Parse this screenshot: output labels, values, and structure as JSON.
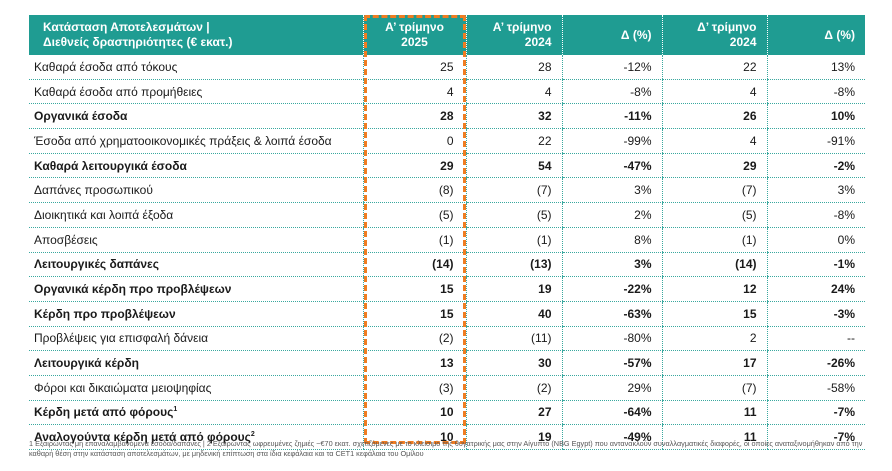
{
  "table": {
    "headers": [
      {
        "line1": "Κατάσταση Αποτελεσμάτων |",
        "line2": "Διεθνείς δραστηριότητες (€ εκατ.)"
      },
      {
        "line1": "Α’ τρίμηνο",
        "line2": "2025"
      },
      {
        "line1": "Α’ τρίμηνο",
        "line2": "2024"
      },
      {
        "line1": "Δ (%)",
        "line2": ""
      },
      {
        "line1": "Δ’ τρίμηνο",
        "line2": "2024"
      },
      {
        "line1": "Δ (%)",
        "line2": ""
      }
    ],
    "rows": [
      {
        "label": "Καθαρά έσοδα από τόκους",
        "sup": "",
        "bold": false,
        "values": [
          "25",
          "28",
          "-12%",
          "22",
          "13%"
        ]
      },
      {
        "label": "Καθαρά έσοδα από προμήθειες",
        "sup": "",
        "bold": false,
        "values": [
          "4",
          "4",
          "-8%",
          "4",
          "-8%"
        ]
      },
      {
        "label": "Οργανικά έσοδα",
        "sup": "",
        "bold": true,
        "values": [
          "28",
          "32",
          "-11%",
          "26",
          "10%"
        ]
      },
      {
        "label": "Έσοδα από χρηματοοικονομικές πράξεις & λοιπά έσοδα",
        "sup": "",
        "bold": false,
        "values": [
          "0",
          "22",
          "-99%",
          "4",
          "-91%"
        ]
      },
      {
        "label": "Καθαρά λειτουργικά έσοδα",
        "sup": "",
        "bold": true,
        "values": [
          "29",
          "54",
          "-47%",
          "29",
          "-2%"
        ]
      },
      {
        "label": "Δαπάνες προσωπικού",
        "sup": "",
        "bold": false,
        "values": [
          "(8)",
          "(7)",
          "3%",
          "(7)",
          "3%"
        ]
      },
      {
        "label": "Διοικητικά και λοιπά έξοδα",
        "sup": "",
        "bold": false,
        "values": [
          "(5)",
          "(5)",
          "2%",
          "(5)",
          "-8%"
        ]
      },
      {
        "label": "Αποσβέσεις",
        "sup": "",
        "bold": false,
        "values": [
          "(1)",
          "(1)",
          "8%",
          "(1)",
          "0%"
        ]
      },
      {
        "label": "Λειτουργικές δαπάνες",
        "sup": "",
        "bold": true,
        "values": [
          "(14)",
          "(13)",
          "3%",
          "(14)",
          "-1%"
        ]
      },
      {
        "label": "Οργανικά κέρδη προ προβλέψεων",
        "sup": "",
        "bold": true,
        "values": [
          "15",
          "19",
          "-22%",
          "12",
          "24%"
        ]
      },
      {
        "label": "Κέρδη προ προβλέψεων",
        "sup": "",
        "bold": true,
        "values": [
          "15",
          "40",
          "-63%",
          "15",
          "-3%"
        ]
      },
      {
        "label": "Προβλέψεις για επισφαλή δάνεια",
        "sup": "",
        "bold": false,
        "values": [
          "(2)",
          "(11)",
          "-80%",
          "2",
          "--"
        ]
      },
      {
        "label": "Λειτουργικά κέρδη",
        "sup": "",
        "bold": true,
        "values": [
          "13",
          "30",
          "-57%",
          "17",
          "-26%"
        ]
      },
      {
        "label": "Φόροι και δικαιώματα μειοψηφίας",
        "sup": "",
        "bold": false,
        "values": [
          "(3)",
          "(2)",
          "29%",
          "(7)",
          "-58%"
        ]
      },
      {
        "label": "Κέρδη μετά από φόρους",
        "sup": "1",
        "bold": true,
        "values": [
          "10",
          "27",
          "-64%",
          "11",
          "-7%"
        ]
      },
      {
        "label": "Αναλογούντα κέρδη μετά από φόρους",
        "sup": "2",
        "bold": true,
        "values": [
          "10",
          "19",
          "-49%",
          "11",
          "-7%"
        ]
      }
    ]
  },
  "footnote": "1 Εξαιρώντας μη επαναλαμβανόμενα έσοδα/δαπάνες | 2 Εξαιρώντας ωφρευμένες ζημιές ~€70 εκατ. σχετιζόμενες με το κλείσιμο της θυγατρικής μας στην Αίγυπτο (NBG Egypt) που αντανακλούν συναλλαγματικές διαφορές, οι οποίες αναταξινομήθηκαν από την καθαρή θέση στην κατάσταση αποτελεσμάτων, με μηδενική επίπτωση στα ίδια κεφάλαια και τα CET1 κεφάλαια του Ομίλου",
  "colors": {
    "header_bg": "#1f9c92",
    "highlight_border": "#ef7d22",
    "row_divider": "#39a89f"
  }
}
